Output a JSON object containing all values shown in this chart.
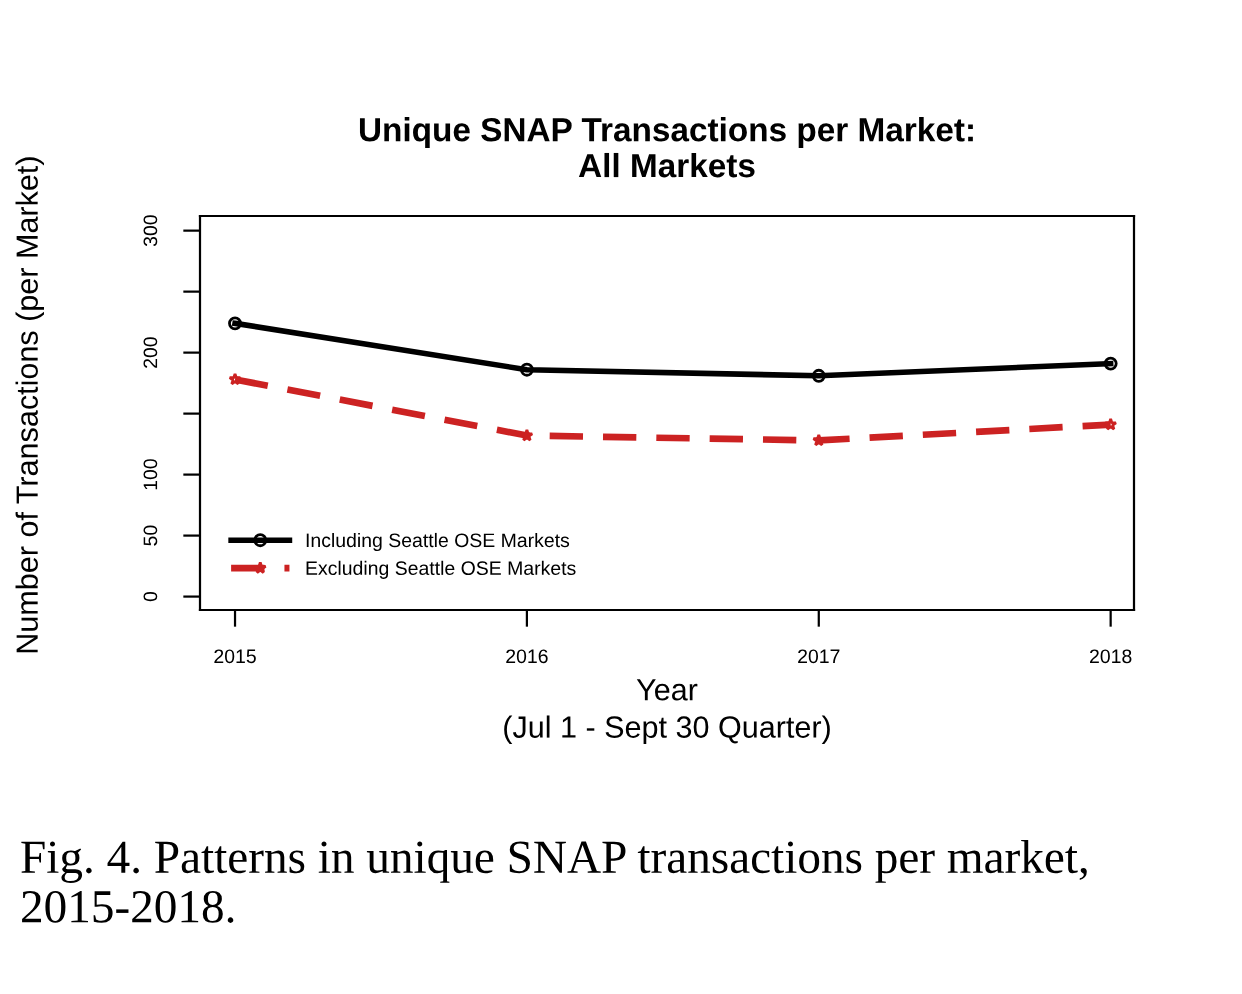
{
  "chart_data": {
    "type": "line",
    "title": "Unique SNAP Transactions per Market:\nAll Markets",
    "xlabel": "Year\n(Jul 1 - Sept 30 Quarter)",
    "ylabel": "Number of Transactions (per Market)",
    "x": [
      2015,
      2016,
      2017,
      2018
    ],
    "series": [
      {
        "name": "Including Seattle OSE Markets",
        "color": "#000000",
        "values": [
          224,
          186,
          181,
          191
        ],
        "marker": "circle",
        "line_style": "solid"
      },
      {
        "name": "Excluding Seattle OSE Markets",
        "color": "#cc2222",
        "values": [
          178,
          132,
          128,
          141
        ],
        "marker": "star",
        "line_style": "dashed"
      }
    ],
    "xlim": [
      2014.88,
      2018.08
    ],
    "xticks": [
      2015,
      2016,
      2017,
      2018
    ],
    "ylim": [
      -11,
      312
    ],
    "yticks": [
      0,
      50,
      100,
      {
        "value": 150,
        "label": null
      },
      200,
      {
        "value": 250,
        "label": null
      },
      300
    ],
    "grid": false,
    "legend": "bottom left",
    "annotations": [
      "Fig. 4. Patterns in unique SNAP transactions per market, 2015-2018."
    ]
  }
}
